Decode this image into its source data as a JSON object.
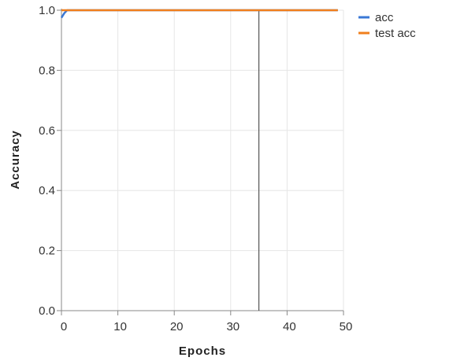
{
  "chart_data": {
    "type": "line",
    "xlabel": "Epochs",
    "ylabel": "Accuracy",
    "xlim": [
      0,
      50
    ],
    "ylim": [
      0,
      1
    ],
    "xticks": [
      0,
      10,
      20,
      30,
      40,
      50
    ],
    "yticks": [
      0.0,
      0.2,
      0.4,
      0.6,
      0.8,
      1.0
    ],
    "ytick_labels": [
      "0.0",
      "0.2",
      "0.4",
      "0.6",
      "0.8",
      "1.0"
    ],
    "grid": true,
    "legend_position": "top-right",
    "vertical_marker_x": 35,
    "series": [
      {
        "name": "acc",
        "color": "#3a78d6",
        "x": [
          0,
          0.5,
          1,
          2,
          3,
          5,
          10,
          15,
          20,
          25,
          30,
          35,
          40,
          45,
          49
        ],
        "y": [
          0.975,
          0.99,
          1.0,
          1.0,
          1.0,
          1.0,
          1.0,
          1.0,
          1.0,
          1.0,
          1.0,
          1.0,
          1.0,
          1.0,
          1.0
        ]
      },
      {
        "name": "test acc",
        "color": "#f07f1d",
        "x": [
          0,
          1,
          2,
          3,
          5,
          10,
          15,
          20,
          25,
          30,
          35,
          40,
          45,
          49
        ],
        "y": [
          1.0,
          1.0,
          1.0,
          1.0,
          1.0,
          1.0,
          1.0,
          1.0,
          1.0,
          1.0,
          1.0,
          1.0,
          1.0,
          1.0
        ]
      }
    ]
  }
}
